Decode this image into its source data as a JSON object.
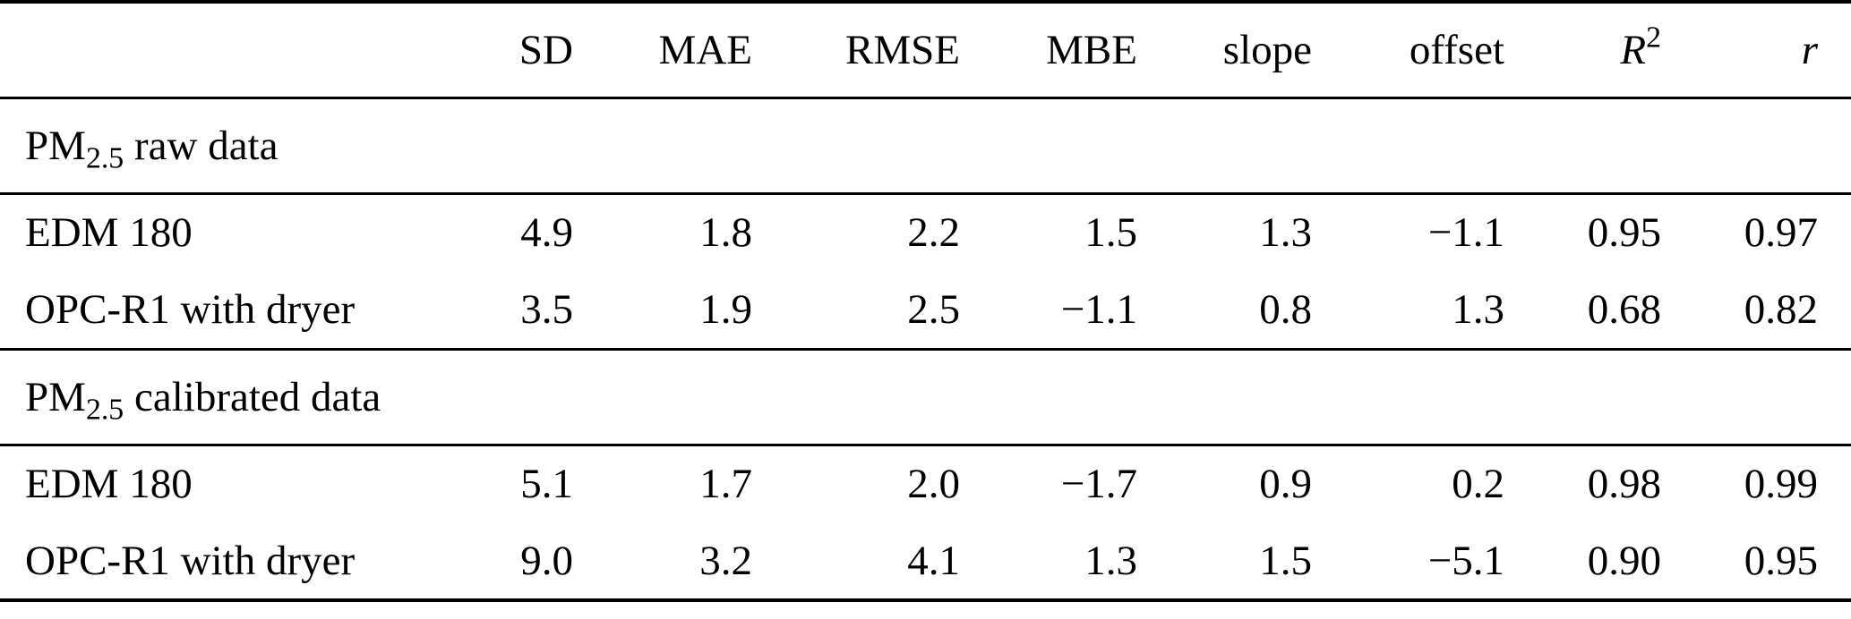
{
  "table": {
    "header": {
      "label": "",
      "sd": "SD",
      "mae": "MAE",
      "rmse": "RMSE",
      "mbe": "MBE",
      "slope": "slope",
      "offset": "offset",
      "r2_base": "R",
      "r2_sup": "2",
      "r": "r"
    },
    "sections": [
      {
        "title_base": "PM",
        "title_sub": "2.5",
        "title_rest": " raw data",
        "rows": [
          {
            "label": "EDM 180",
            "values": [
              "4.9",
              "1.8",
              "2.2",
              "1.5",
              "1.3",
              "−1.1",
              "0.95",
              "0.97"
            ]
          },
          {
            "label": "OPC-R1 with dryer",
            "values": [
              "3.5",
              "1.9",
              "2.5",
              "−1.1",
              "0.8",
              "1.3",
              "0.68",
              "0.82"
            ]
          }
        ]
      },
      {
        "title_base": "PM",
        "title_sub": "2.5",
        "title_rest": " calibrated data",
        "rows": [
          {
            "label": "EDM 180",
            "values": [
              "5.1",
              "1.7",
              "2.0",
              "−1.7",
              "0.9",
              "0.2",
              "0.98",
              "0.99"
            ]
          },
          {
            "label": "OPC-R1 with dryer",
            "values": [
              "9.0",
              "3.2",
              "4.1",
              "1.3",
              "1.5",
              "−5.1",
              "0.90",
              "0.95"
            ]
          }
        ]
      }
    ]
  }
}
